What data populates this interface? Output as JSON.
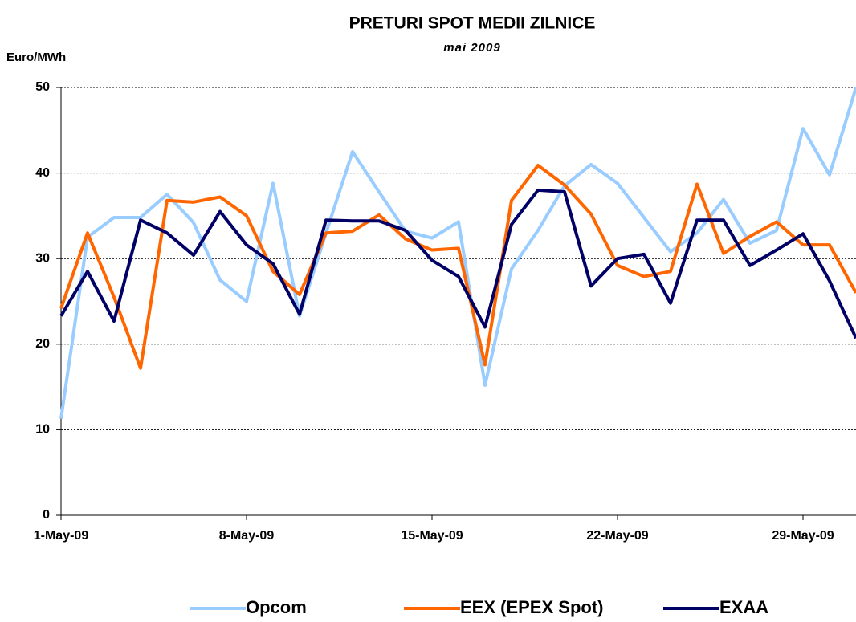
{
  "chart_data": {
    "type": "line",
    "title": "PRETURI SPOT MEDII ZILNICE",
    "subtitle": "mai 2009",
    "y_label": "Euro/MWh",
    "categories": [
      "1-May-09",
      null,
      null,
      null,
      null,
      null,
      null,
      "8-May-09",
      null,
      null,
      null,
      null,
      null,
      null,
      "15-May-09",
      null,
      null,
      null,
      null,
      null,
      null,
      "22-May-09",
      null,
      null,
      null,
      null,
      null,
      null,
      "29-May-09",
      null,
      null
    ],
    "series": [
      {
        "name": "Opcom",
        "color": "#99ccff",
        "values": [
          11.3,
          32.5,
          34.8,
          34.8,
          37.5,
          34.2,
          27.5,
          25,
          38.8,
          23.3,
          33,
          42.5,
          37.8,
          33.2,
          32.4,
          34.3,
          15.2,
          28.8,
          33.3,
          38.5,
          41,
          38.8,
          34.8,
          30.8,
          33,
          36.9,
          31.8,
          33.3,
          45.2,
          39.8,
          50
        ]
      },
      {
        "name": "EEX (EPEX Spot)",
        "color": "#ff6600",
        "values": [
          24.2,
          33,
          25.5,
          17.2,
          36.8,
          36.6,
          37.2,
          35,
          28.5,
          25.8,
          33,
          33.2,
          35.1,
          32.3,
          31,
          31.2,
          17.6,
          36.8,
          40.9,
          38.6,
          35.2,
          29.2,
          27.9,
          28.5,
          38.7,
          30.6,
          32.6,
          34.3,
          31.6,
          31.6,
          26
        ]
      },
      {
        "name": "EXAA",
        "color": "#000066",
        "values": [
          23.3,
          28.5,
          22.7,
          34.5,
          33,
          30.4,
          35.5,
          31.6,
          29.4,
          23.5,
          34.5,
          34.4,
          34.4,
          33.3,
          29.8,
          27.9,
          22,
          34,
          38,
          37.8,
          26.8,
          30,
          30.5,
          24.8,
          34.5,
          34.5,
          29.2,
          31,
          32.9,
          27.4,
          20.7
        ]
      }
    ],
    "ylim": [
      0,
      50
    ],
    "yticks": [
      0,
      10,
      20,
      30,
      40,
      50
    ],
    "grid": true,
    "legend": "bottom"
  }
}
